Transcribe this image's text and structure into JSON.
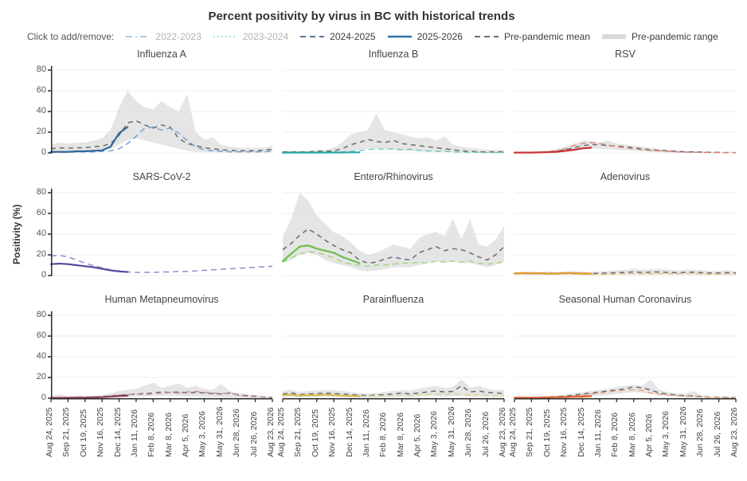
{
  "title": "Percent positivity by virus in BC with historical trends",
  "y_axis_label": "Positivity (%)",
  "legend": {
    "prompt": "Click to add/remove:",
    "items": [
      {
        "label": "2022-2023",
        "color": "#9fc6df",
        "style": "dashdot",
        "active": false
      },
      {
        "label": "2023-2024",
        "color": "#9fd6d2",
        "style": "dotted",
        "active": false
      },
      {
        "label": "2024-2025",
        "color": "#46628c",
        "style": "dashed",
        "active": true
      },
      {
        "label": "2025-2026",
        "color": "#2e6fad",
        "style": "solid",
        "active": true
      },
      {
        "label": "Pre-pandemic mean",
        "color": "#595959",
        "style": "dashed",
        "active": true
      },
      {
        "label": "Pre-pandemic range",
        "color": "#d9d9d9",
        "style": "band",
        "active": true
      }
    ]
  },
  "colors": {
    "mean": "#6b6b6b",
    "band": "#dedede",
    "grid": "#ececec",
    "axis": "#2b2b2b"
  },
  "chart_data": {
    "type": "line",
    "facet_grid": [
      3,
      3
    ],
    "ylim": [
      0,
      88
    ],
    "y_ticks": [
      "0",
      "20",
      "40",
      "60",
      "80"
    ],
    "x": [
      "Aug 24, 2025",
      "Sep 7, 2025",
      "Sep 21, 2025",
      "Oct 5, 2025",
      "Oct 19, 2025",
      "Nov 2, 2025",
      "Nov 16, 2025",
      "Nov 30, 2025",
      "Dec 14, 2025",
      "Dec 28, 2025",
      "Jan 11, 2026",
      "Jan 25, 2026",
      "Feb 8, 2026",
      "Feb 22, 2026",
      "Mar 8, 2026",
      "Mar 22, 2026",
      "Apr 5, 2026",
      "Apr 19, 2026",
      "May 3, 2026",
      "May 17, 2026",
      "May 31, 2026",
      "Jun 14, 2026",
      "Jun 28, 2026",
      "Jul 12, 2026",
      "Jul 26, 2026",
      "Aug 9, 2026",
      "Aug 23, 2026"
    ],
    "x_tick_labels": [
      "Aug 24, 2025",
      "Sep 21, 2025",
      "Oct 19, 2025",
      "Nov 16, 2025",
      "Dec 14, 2025",
      "Jan 11, 2026",
      "Feb 8, 2026",
      "Mar 8, 2026",
      "Apr 5, 2026",
      "May 3, 2026",
      "May 31, 2026",
      "Jun 28, 2026",
      "Jul 26, 2026",
      "Aug 23, 2026"
    ],
    "series_legend": [
      "2025-2026 (solid)",
      "2024-2025 (dashed)",
      "Pre-pandemic mean (gray dashed)",
      "Pre-pandemic range (gray band)"
    ],
    "panels": [
      {
        "title": "Influenza A",
        "colors": {
          "current": "#33689e",
          "previous": "#6f9ecf"
        },
        "current": [
          1,
          1,
          1,
          1.5,
          1.5,
          2,
          2.5,
          6,
          19,
          25
        ],
        "previous": [
          0.5,
          0.5,
          0.5,
          1,
          1,
          1,
          1.5,
          2,
          4,
          9,
          16,
          24,
          25,
          22,
          24,
          19,
          12,
          6,
          3,
          2,
          1.5,
          1,
          1,
          1,
          1,
          1,
          1.5
        ],
        "mean": [
          4,
          5,
          4.5,
          5,
          5,
          6,
          6.5,
          9,
          17,
          29,
          31,
          27,
          24,
          27,
          25,
          14,
          9,
          7,
          5,
          4,
          3,
          2.5,
          2,
          2,
          2,
          2.5,
          3.5
        ],
        "range_high": [
          8,
          10,
          9,
          10,
          10,
          12,
          14,
          22,
          44,
          60,
          50,
          44,
          42,
          50,
          44,
          40,
          57,
          20,
          13,
          15,
          8,
          6,
          5,
          5,
          5,
          5,
          7
        ],
        "range_low": [
          1,
          1,
          1,
          1,
          1,
          1,
          2,
          4,
          8,
          12,
          14,
          12,
          10,
          8,
          6,
          4,
          2,
          1,
          1,
          0.5,
          0.5,
          0.5,
          0.5,
          0.5,
          0.5,
          0.5,
          1
        ]
      },
      {
        "title": "Influenza B",
        "colors": {
          "current": "#2aa8a8",
          "previous": "#6fc9c3"
        },
        "current": [
          0.3,
          0.3,
          0.3,
          0.3,
          0.3,
          0.3,
          0.4,
          0.4,
          0.5,
          0.5
        ],
        "previous": [
          0.2,
          0.2,
          0.2,
          0.3,
          0.3,
          0.5,
          0.5,
          1,
          1.5,
          2,
          3,
          4,
          3.5,
          4,
          3,
          3.5,
          2.5,
          2,
          1.5,
          1.5,
          1,
          0.8,
          0.5,
          0.5,
          0.3,
          0.3,
          0.2
        ],
        "mean": [
          1,
          1,
          1,
          1,
          1.5,
          1.5,
          2,
          4,
          8,
          10,
          13,
          11,
          10,
          12,
          9,
          8,
          7,
          6,
          5,
          4,
          3,
          2,
          1.5,
          1,
          1,
          1,
          1
        ],
        "range_high": [
          2,
          2,
          2,
          2,
          3,
          3,
          5,
          10,
          18,
          20,
          22,
          38,
          22,
          20,
          18,
          16,
          14,
          15,
          12,
          16,
          8,
          6,
          5,
          4,
          3,
          3,
          3
        ],
        "range_low": [
          0,
          0,
          0,
          0,
          0,
          0,
          0.5,
          1,
          2,
          3,
          4,
          4,
          3,
          3,
          2,
          2,
          1.5,
          1,
          1,
          1,
          0.5,
          0.5,
          0,
          0,
          0,
          0,
          0
        ]
      },
      {
        "title": "RSV",
        "colors": {
          "current": "#cc3333",
          "previous": "#e57f7a"
        },
        "current": [
          0.3,
          0.3,
          0.3,
          0.5,
          0.8,
          1,
          2,
          3,
          4.5,
          5
        ],
        "previous": [
          0.2,
          0.3,
          0.4,
          0.5,
          1,
          2,
          4,
          7,
          9,
          10,
          9,
          7.5,
          6,
          5,
          4,
          3,
          2.5,
          2,
          1.5,
          1,
          0.8,
          0.5,
          0.5,
          0.3,
          0.3,
          0.2,
          0.2
        ],
        "mean": [
          0.3,
          0.3,
          0.5,
          0.8,
          1,
          2,
          3,
          5,
          7,
          8,
          8,
          7,
          6.5,
          6,
          5,
          4,
          3,
          2.5,
          2,
          1.5,
          1,
          1,
          0.8,
          0.5,
          0.5,
          0.3,
          0.3
        ],
        "range_high": [
          1,
          1,
          1,
          1.5,
          2,
          4,
          6,
          9,
          12,
          11,
          10,
          12,
          9,
          8,
          7,
          6,
          5,
          4,
          3,
          2.5,
          2,
          2,
          1.5,
          1,
          1,
          1,
          1
        ],
        "range_low": [
          0,
          0,
          0,
          0,
          0,
          0.5,
          1,
          2,
          3,
          4,
          4,
          3.5,
          3,
          2.5,
          2,
          1.5,
          1,
          0.5,
          0.5,
          0.3,
          0.2,
          0.2,
          0,
          0,
          0,
          0,
          0
        ]
      },
      {
        "title": "SARS-CoV-2",
        "colors": {
          "current": "#5b4a9e",
          "previous": "#8f84cc"
        },
        "current": [
          11,
          11.5,
          11,
          10,
          9,
          8,
          6.5,
          5,
          4,
          3.5
        ],
        "previous": [
          19,
          19.5,
          18,
          15,
          12,
          9.5,
          7.5,
          5.5,
          4.5,
          3.5,
          3,
          3,
          3,
          3.5,
          3.5,
          4,
          4,
          4.5,
          5,
          5.5,
          6,
          6.5,
          7,
          7.5,
          8,
          8.5,
          9
        ],
        "mean": null,
        "range_high": null,
        "range_low": null
      },
      {
        "title": "Entero/Rhinovirus",
        "colors": {
          "current": "#6abf4b",
          "previous": "#a2d374"
        },
        "current": [
          14,
          21,
          28,
          29,
          26,
          24,
          22,
          18,
          15,
          12
        ],
        "previous": [
          13,
          17,
          21,
          23,
          22,
          20,
          17,
          13,
          11,
          10,
          9,
          10,
          10,
          11,
          12,
          12,
          13,
          12,
          14,
          13,
          14,
          13,
          14,
          12,
          11,
          12,
          13
        ],
        "mean": [
          25,
          31,
          39,
          45,
          40,
          34,
          29,
          25,
          22,
          15,
          12,
          13,
          16,
          18,
          16,
          15,
          22,
          25,
          28,
          24,
          26,
          25,
          22,
          18,
          15,
          20,
          28
        ],
        "range_high": [
          38,
          55,
          80,
          72,
          58,
          50,
          42,
          38,
          32,
          24,
          20,
          22,
          26,
          30,
          28,
          26,
          36,
          40,
          42,
          38,
          55,
          35,
          55,
          30,
          28,
          35,
          48
        ],
        "range_low": [
          12,
          15,
          20,
          22,
          20,
          15,
          12,
          10,
          8,
          5,
          4,
          5,
          6,
          8,
          8,
          8,
          10,
          12,
          14,
          12,
          14,
          12,
          12,
          10,
          8,
          10,
          14
        ]
      },
      {
        "title": "Adenovirus",
        "colors": {
          "current": "#e39a2d",
          "previous": "#ecc07a"
        },
        "current": [
          2,
          2.5,
          2,
          2.2,
          1.8,
          2,
          2.5,
          2.2,
          2,
          1.8
        ],
        "previous": [
          1.5,
          1.8,
          1.5,
          1.6,
          1.4,
          1.5,
          1.8,
          1.5,
          1.2,
          1,
          1,
          1.2,
          1.5,
          1.5,
          1.8,
          1.5,
          1.5,
          2,
          1.8,
          1.5,
          1.8,
          2,
          1.5,
          1.2,
          1.5,
          1.8,
          1.5
        ],
        "mean": [
          2,
          2,
          2.2,
          2,
          2.3,
          2,
          2.2,
          2.5,
          2,
          2,
          2.2,
          2.5,
          2.8,
          3,
          3.5,
          3,
          3.2,
          3.5,
          3,
          2.8,
          3,
          3.2,
          2.8,
          2.5,
          2.5,
          2.8,
          2.5
        ],
        "range_high": [
          3.5,
          3.5,
          4,
          3.5,
          4,
          3.5,
          4,
          4.5,
          3.5,
          3.5,
          4,
          4.5,
          5,
          5.5,
          6.5,
          5.5,
          6,
          6.5,
          5.5,
          5,
          5.5,
          6,
          5,
          4.5,
          4.5,
          5,
          4.5
        ],
        "range_low": [
          0.5,
          0.5,
          0.5,
          0.5,
          0.5,
          0.5,
          0.5,
          0.5,
          0.5,
          0.5,
          0.5,
          0.5,
          1,
          1,
          1,
          1,
          1,
          1,
          1,
          1,
          1,
          1,
          0.5,
          0.5,
          0.5,
          0.5,
          0.5
        ]
      },
      {
        "title": "Human Metapneumovirus",
        "colors": {
          "current": "#8e3b5c",
          "previous": "#c4889d"
        },
        "current": [
          0.3,
          0.3,
          0.4,
          0.5,
          0.5,
          0.8,
          1,
          1.5,
          2,
          2.5
        ],
        "previous": [
          0.2,
          0.3,
          0.3,
          0.4,
          0.5,
          0.8,
          1,
          2,
          3,
          3.5,
          4,
          3.5,
          4.5,
          5,
          5.5,
          5,
          6,
          6.5,
          5.5,
          5,
          4.5,
          5,
          3,
          2,
          1.5,
          1,
          0.5
        ],
        "mean": [
          0.5,
          0.5,
          0.5,
          0.8,
          1,
          1,
          1.5,
          2,
          3,
          3.5,
          4,
          4.5,
          5,
          6,
          5.5,
          6,
          5,
          5.5,
          5,
          4.5,
          4,
          5,
          3,
          2.5,
          2,
          1,
          0.8
        ],
        "range_high": [
          1.5,
          4,
          1.5,
          2,
          2,
          2.5,
          3,
          5,
          7,
          8,
          9,
          12,
          15,
          10,
          12,
          14,
          10,
          12,
          9,
          8,
          14,
          7,
          5,
          4,
          3,
          2,
          1.5
        ],
        "range_low": [
          0,
          0,
          0,
          0,
          0,
          0,
          0.5,
          0.5,
          1,
          1,
          1.5,
          1.5,
          2,
          2,
          2,
          2,
          1.5,
          1.5,
          1,
          1,
          1,
          0.5,
          0.5,
          0,
          0,
          0,
          0
        ]
      },
      {
        "title": "Parainfluenza",
        "colors": {
          "current": "#d4bf4e",
          "previous": "#e0d48a"
        },
        "current": [
          3,
          3.5,
          2.5,
          3,
          2.8,
          3.5,
          3,
          2.5,
          2,
          2
        ],
        "previous": [
          2.5,
          3,
          2.8,
          3,
          3,
          3.2,
          3,
          2.8,
          2.2,
          2,
          2,
          2.2,
          2.5,
          2.8,
          3,
          2.5,
          3,
          3.5,
          4,
          3.5,
          4,
          3.5,
          3,
          3.5,
          3,
          2.5,
          2.5
        ],
        "mean": [
          4,
          5,
          3.5,
          4,
          4.5,
          5,
          4.5,
          4,
          3.5,
          3,
          2.5,
          3,
          3.5,
          4,
          5,
          4,
          5,
          6,
          7,
          6,
          6.5,
          12,
          6,
          7,
          5.5,
          5,
          4.5
        ],
        "range_high": [
          7,
          8,
          6,
          7,
          7.5,
          8,
          7.5,
          7,
          6,
          5,
          4.5,
          5,
          6,
          7,
          8,
          7,
          9,
          11,
          12,
          10,
          11,
          18,
          10,
          12,
          9,
          8,
          8
        ],
        "range_low": [
          1,
          1.5,
          1,
          1,
          1.5,
          1.5,
          1.5,
          1,
          1,
          0.5,
          0.5,
          0.5,
          1,
          1,
          1.5,
          1,
          1.5,
          2,
          2,
          1.5,
          2,
          2,
          1.5,
          1.5,
          1,
          1,
          1
        ]
      },
      {
        "title": "Seasonal Human Coronavirus",
        "colors": {
          "current": "#d95f2b",
          "previous": "#e8a07a"
        },
        "current": [
          0.5,
          0.5,
          0.5,
          0.5,
          0.8,
          1,
          1,
          1.5,
          1.5,
          2
        ],
        "previous": [
          0.3,
          0.3,
          0.4,
          0.5,
          0.5,
          1,
          1.5,
          2,
          3,
          4,
          5,
          6,
          7,
          8,
          8,
          7.5,
          5,
          4,
          3,
          2.5,
          2,
          1.5,
          1,
          1,
          0.8,
          0.5,
          0.5
        ],
        "mean": [
          0.5,
          0.5,
          0.5,
          0.8,
          1,
          1.5,
          2,
          3,
          4,
          5,
          6,
          7,
          8,
          9,
          11,
          10,
          8,
          5,
          4,
          3,
          2.5,
          2,
          1.5,
          1,
          1,
          0.8,
          0.5
        ],
        "range_high": [
          1,
          1,
          1,
          1.5,
          2,
          2.5,
          3.5,
          5,
          6,
          7,
          8,
          9,
          11,
          12,
          13,
          12,
          18,
          8,
          6,
          5,
          4,
          7,
          3,
          2,
          2,
          1.5,
          1
        ],
        "range_low": [
          0,
          0,
          0,
          0,
          0.3,
          0.5,
          0.8,
          1,
          1.5,
          2,
          2.5,
          3,
          4,
          5,
          6,
          5,
          4,
          2.5,
          2,
          1.5,
          1,
          0.8,
          0.5,
          0.3,
          0.3,
          0,
          0
        ]
      }
    ]
  }
}
